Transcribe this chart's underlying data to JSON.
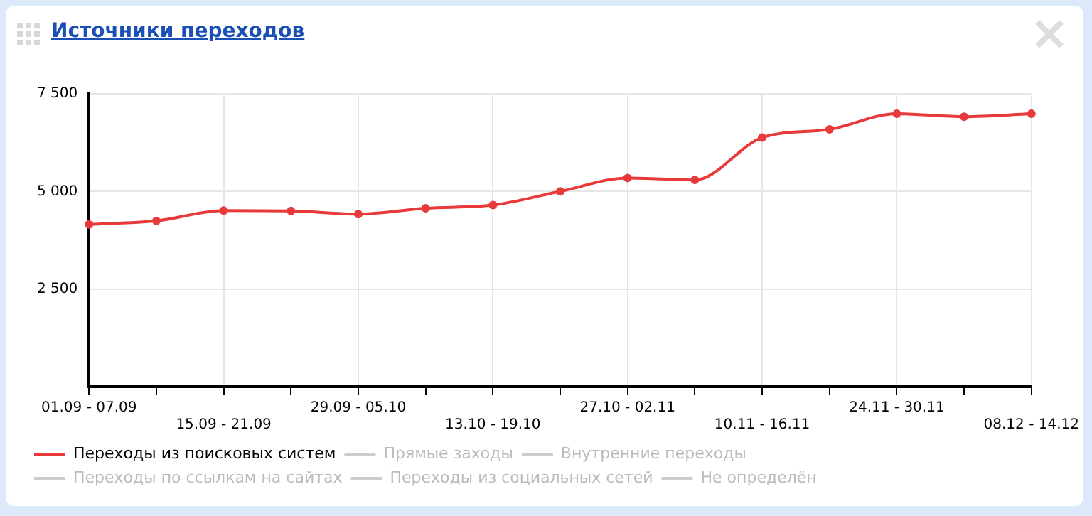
{
  "chart_data": {
    "type": "line",
    "title": "Источники переходов",
    "categories": [
      "01.09 - 07.09",
      null,
      "15.09 - 21.09",
      null,
      "29.09 - 05.10",
      null,
      "13.10 - 19.10",
      null,
      "27.10 - 02.11",
      null,
      "10.11 - 16.11",
      null,
      "24.11 - 30.11",
      null,
      "08.12 - 14.12"
    ],
    "series": [
      {
        "name": "Переходы из поисковых систем",
        "color": "#e83a3a",
        "values": [
          4155,
          4245,
          4510,
          4500,
          4420,
          4570,
          4650,
          5000,
          5345,
          5295,
          6380,
          6590,
          6990,
          6915,
          6990
        ]
      },
      {
        "name": "Прямые заходы",
        "color": "#cccccc",
        "values": [
          null,
          null,
          null,
          null,
          null,
          null,
          null,
          null,
          null,
          null,
          null,
          null,
          null,
          null,
          null
        ]
      },
      {
        "name": "Внутренние переходы",
        "color": "#cccccc",
        "values": [
          null,
          null,
          null,
          null,
          null,
          null,
          null,
          null,
          null,
          null,
          null,
          null,
          null,
          null,
          null
        ]
      },
      {
        "name": "Переходы по ссылкам на сайтах",
        "color": "#cccccc",
        "values": [
          null,
          null,
          null,
          null,
          null,
          null,
          null,
          null,
          null,
          null,
          null,
          null,
          null,
          null,
          null
        ]
      },
      {
        "name": "Переходы из социальных сетей",
        "color": "#cccccc",
        "values": [
          null,
          null,
          null,
          null,
          null,
          null,
          null,
          null,
          null,
          null,
          null,
          null,
          null,
          null,
          null
        ]
      },
      {
        "name": "Не определён",
        "color": "#cccccc",
        "values": [
          null,
          null,
          null,
          null,
          null,
          null,
          null,
          null,
          null,
          null,
          null,
          null,
          null,
          null,
          null
        ]
      }
    ],
    "ylim": [
      0,
      7500
    ],
    "yticks": [
      {
        "value": 2500,
        "label": "2 500"
      },
      {
        "value": 5000,
        "label": "5 000"
      },
      {
        "value": 7500,
        "label": "7 500"
      }
    ],
    "grid": true,
    "legend": "bottom",
    "marker": "circle",
    "line_style": "solid"
  }
}
